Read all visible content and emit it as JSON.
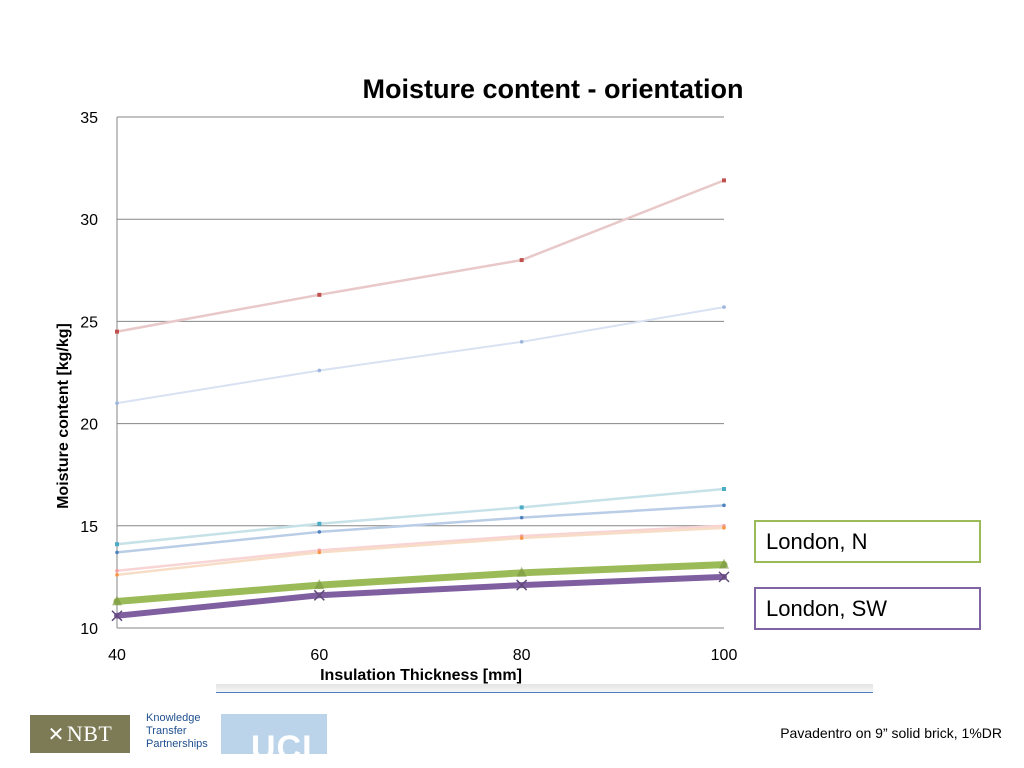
{
  "chart_data": {
    "type": "line",
    "title": "Moisture content - orientation",
    "xlabel": "Insulation Thickness [mm]",
    "ylabel": "Moisture content [kg/kg]",
    "x": [
      40,
      60,
      80,
      100
    ],
    "ylim": [
      10,
      35
    ],
    "yticks": [
      10,
      15,
      20,
      25,
      30,
      35
    ],
    "grid": true,
    "series": [
      {
        "values": [
          24.5,
          26.3,
          28.0,
          31.9
        ],
        "color": "#e8c8c8",
        "marker_color": "#c0504d",
        "marker": "square",
        "width": 2.5
      },
      {
        "values": [
          21.0,
          22.6,
          24.0,
          25.7
        ],
        "color": "#d8e2f2",
        "marker_color": "#9db5dc",
        "marker": "circle",
        "width": 2
      },
      {
        "values": [
          14.1,
          15.1,
          15.9,
          16.8
        ],
        "color": "#c6e2e8",
        "marker_color": "#4bacc6",
        "marker": "square",
        "width": 2.5
      },
      {
        "values": [
          13.7,
          14.7,
          15.4,
          16.0
        ],
        "color": "#b9cde6",
        "marker_color": "#4f81bd",
        "marker": "circle",
        "width": 2.5
      },
      {
        "values": [
          12.8,
          13.8,
          14.5,
          15.0
        ],
        "color": "#f8d4d4",
        "marker_color": "#f2a0a0",
        "marker": "circle",
        "width": 2.5
      },
      {
        "values": [
          12.6,
          13.7,
          14.4,
          14.9
        ],
        "color": "#f8ddc6",
        "marker_color": "#f79646",
        "marker": "circle",
        "width": 2.5
      },
      {
        "name": "London, N",
        "values": [
          11.3,
          12.1,
          12.7,
          13.1
        ],
        "color": "#9bbb59",
        "marker_color": "#77933c",
        "marker": "triangle",
        "width": 7
      },
      {
        "name": "London, SW",
        "values": [
          10.6,
          11.6,
          12.1,
          12.5
        ],
        "color": "#7f5fa0",
        "marker_color": "#60497a",
        "marker": "x",
        "width": 6
      }
    ]
  },
  "legend": {
    "north": {
      "label": "London, N",
      "border_color": "#9bbb59"
    },
    "southwest": {
      "label": "London, SW",
      "border_color": "#8064a2"
    }
  },
  "footer": {
    "nbt_logo": "NBT",
    "ktp_lines": [
      "Knowledge",
      "Transfer",
      "Partnerships"
    ],
    "ucl_logo": "UCL",
    "caption": "Pavadentro on 9” solid brick, 1%DR"
  }
}
